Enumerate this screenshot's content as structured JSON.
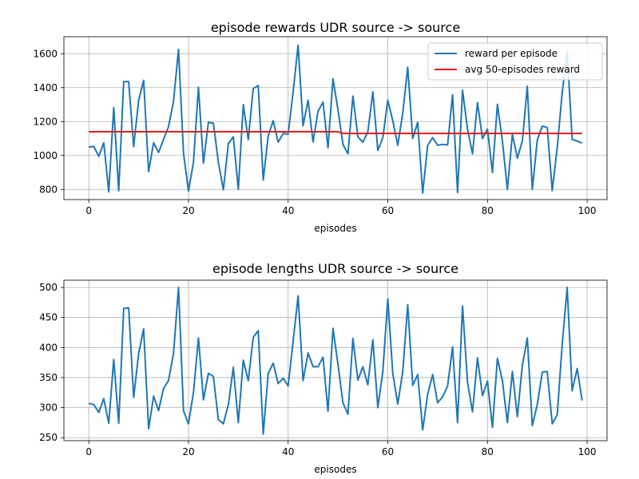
{
  "chart_data": [
    {
      "type": "line",
      "title": "episode rewards UDR source -> source",
      "xlabel": "episodes",
      "ylabel": "",
      "xlim": [
        -5,
        104
      ],
      "ylim": [
        740,
        1700
      ],
      "xticks": [
        0,
        20,
        40,
        60,
        80,
        100
      ],
      "yticks": [
        800,
        1000,
        1200,
        1400,
        1600
      ],
      "grid": true,
      "legend_position": "top-right",
      "series": [
        {
          "name": "reward per episode",
          "color": "#1f77b4",
          "x_start": 0,
          "values": [
            1050,
            1053,
            995,
            1075,
            785,
            1282,
            792,
            1435,
            1435,
            1052,
            1325,
            1443,
            905,
            1075,
            1018,
            1095,
            1170,
            1320,
            1625,
            1015,
            790,
            960,
            1402,
            955,
            1196,
            1190,
            960,
            798,
            1070,
            1110,
            800,
            1300,
            1093,
            1395,
            1412,
            855,
            1115,
            1205,
            1078,
            1130,
            1125,
            1375,
            1650,
            1175,
            1326,
            1080,
            1260,
            1315,
            1045,
            1452,
            1270,
            1065,
            1010,
            1350,
            1110,
            1078,
            1140,
            1375,
            1030,
            1105,
            1326,
            1205,
            1060,
            1250,
            1520,
            1100,
            1195,
            778,
            1060,
            1105,
            1060,
            1065,
            1062,
            1358,
            782,
            1385,
            1155,
            1010,
            1312,
            1100,
            1155,
            900,
            1302,
            1085,
            800,
            1125,
            985,
            1085,
            1408,
            800,
            1090,
            1173,
            1165,
            793,
            1045,
            1370,
            1615,
            1095,
            1085,
            1073
          ]
        },
        {
          "name": "avg 50-episodes reward",
          "color": "#e31a1c",
          "x": [
            0,
            50,
            51,
            99
          ],
          "values": [
            1140,
            1140,
            1130,
            1130
          ]
        }
      ]
    },
    {
      "type": "line",
      "title": "episode lengths UDR source -> source",
      "xlabel": "episodes",
      "ylabel": "",
      "xlim": [
        -5,
        104
      ],
      "ylim": [
        245,
        512
      ],
      "xticks": [
        0,
        20,
        40,
        60,
        80,
        100
      ],
      "yticks": [
        250,
        300,
        350,
        400,
        450,
        500
      ],
      "grid": true,
      "series": [
        {
          "name": "",
          "color": "#1f77b4",
          "x_start": 0,
          "values": [
            307,
            305,
            292,
            315,
            274,
            380,
            274,
            465,
            466,
            317,
            390,
            431,
            265,
            319,
            295,
            332,
            345,
            390,
            500,
            295,
            273,
            325,
            416,
            313,
            357,
            352,
            280,
            273,
            305,
            367,
            275,
            379,
            345,
            417,
            428,
            256,
            357,
            374,
            340,
            349,
            336,
            410,
            486,
            345,
            391,
            368,
            368,
            384,
            294,
            432,
            372,
            308,
            289,
            415,
            346,
            368,
            338,
            413,
            300,
            360,
            481,
            357,
            306,
            360,
            471,
            337,
            355,
            263,
            322,
            355,
            308,
            318,
            336,
            401,
            275,
            469,
            342,
            293,
            383,
            320,
            344,
            267,
            382,
            345,
            275,
            360,
            285,
            370,
            416,
            270,
            305,
            359,
            360,
            273,
            288,
            405,
            500,
            328,
            365,
            312
          ]
        }
      ]
    }
  ]
}
